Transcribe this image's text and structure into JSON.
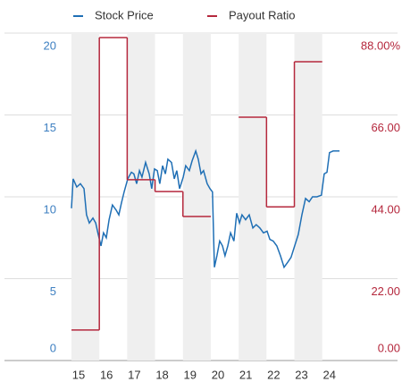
{
  "chart_data": {
    "type": "line",
    "x": [
      15.0,
      15.06,
      15.19,
      15.32,
      15.45,
      15.54,
      15.64,
      15.77,
      15.87,
      15.96,
      16.06,
      16.15,
      16.25,
      16.35,
      16.47,
      16.6,
      16.7,
      16.79,
      16.89,
      17.02,
      17.15,
      17.24,
      17.34,
      17.44,
      17.53,
      17.66,
      17.79,
      17.88,
      17.98,
      18.08,
      18.17,
      18.27,
      18.37,
      18.46,
      18.59,
      18.69,
      18.78,
      18.88,
      19.01,
      19.1,
      19.23,
      19.33,
      19.46,
      19.55,
      19.65,
      19.74,
      19.87,
      19.97,
      20.06,
      20.13,
      20.22,
      20.32,
      20.42,
      20.51,
      20.61,
      20.71,
      20.83,
      20.93,
      21.03,
      21.12,
      21.25,
      21.38,
      21.51,
      21.63,
      21.76,
      21.89,
      22.02,
      22.12,
      22.24,
      22.37,
      22.5,
      22.63,
      22.76,
      22.88,
      23.01,
      23.14,
      23.27,
      23.4,
      23.53,
      23.65,
      23.81,
      23.97,
      24.07,
      24.17,
      24.26,
      24.39,
      24.62
    ],
    "series": [
      {
        "name": "Stock Price",
        "color": "#1f6fb5",
        "values": [
          9.3,
          11.1,
          10.6,
          10.8,
          10.5,
          8.9,
          8.4,
          8.7,
          8.4,
          7.7,
          7.0,
          7.8,
          7.5,
          8.6,
          9.5,
          9.2,
          8.9,
          9.6,
          10.3,
          11.1,
          11.5,
          11.4,
          10.8,
          11.6,
          11.2,
          12.1,
          11.4,
          10.5,
          11.7,
          11.6,
          10.8,
          11.9,
          11.4,
          12.3,
          12.1,
          11.1,
          11.6,
          10.5,
          11.2,
          11.9,
          11.6,
          12.2,
          12.8,
          12.3,
          11.4,
          11.6,
          10.8,
          10.5,
          10.3,
          5.7,
          6.4,
          7.3,
          7.0,
          6.4,
          7.0,
          7.8,
          7.3,
          9.0,
          8.4,
          8.9,
          8.6,
          8.9,
          8.1,
          8.3,
          8.1,
          7.8,
          7.9,
          7.4,
          7.3,
          7.0,
          6.4,
          5.7,
          6.0,
          6.3,
          7.0,
          7.7,
          8.9,
          9.9,
          9.7,
          10.0,
          10.0,
          10.1,
          11.4,
          11.5,
          12.7,
          12.8,
          12.8
        ]
      },
      {
        "name": "Payout Ratio",
        "color": "#b5283d",
        "axis": "y2",
        "step": true,
        "x": [
          15,
          16,
          17,
          18,
          19,
          20,
          21,
          22,
          23,
          24
        ],
        "values": [
          8.2,
          86.8,
          48.6,
          45.4,
          38.7,
          null,
          65.4,
          41.3,
          80.3,
          null
        ]
      }
    ],
    "xlim": [
      15,
      24.65
    ],
    "xticks": [
      15,
      16,
      17,
      18,
      19,
      20,
      21,
      22,
      23,
      24
    ],
    "ylim": [
      0,
      20
    ],
    "yticks": [
      0,
      5,
      10,
      15,
      20
    ],
    "y2lim": [
      0,
      88
    ],
    "y2ticks": [
      {
        "value": 0,
        "label": "0.00"
      },
      {
        "value": 22,
        "label": "22.00"
      },
      {
        "value": 44,
        "label": "44.00"
      },
      {
        "value": 66,
        "label": "66.00"
      },
      {
        "value": 88,
        "label": "88.00%"
      }
    ],
    "grid": true,
    "legend": "top"
  }
}
